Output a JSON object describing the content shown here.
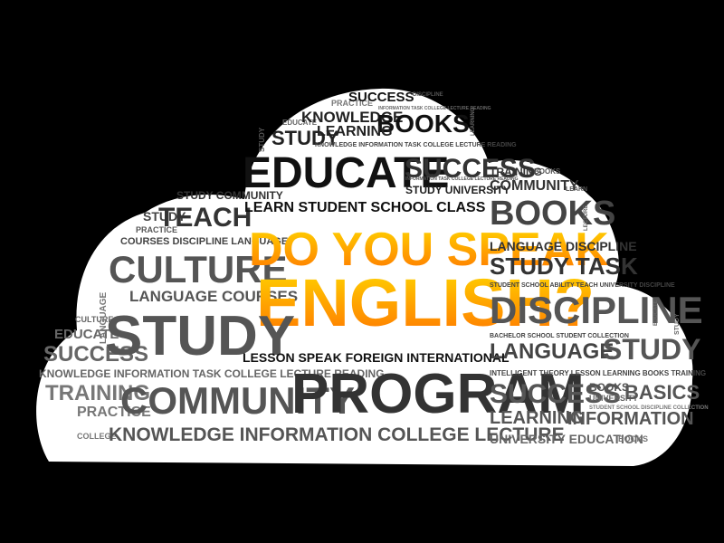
{
  "colors": {
    "background": "#000000",
    "cloud": "#ffffff",
    "highlight_top": "#ffd200",
    "highlight_bottom": "#ff7a00"
  },
  "headline": {
    "line1": "DO YOU SPEAK",
    "line2": "ENGLISH?"
  },
  "rows": {
    "success_top": "SUCCESS",
    "practice": "PRACTICE",
    "discipline_tiny": "DISCIPLINE",
    "information_tiny": "INFORMATION TASK COLLEGE LECTURE READING",
    "educate_small": "EDUCATE",
    "knowledge": "KNOWLEDGE",
    "books_top": "BOOKS",
    "learning_small": "LEARNING",
    "study_small": "STUDY",
    "knowledge_row": "KNOWLEDGE INFORMATION TASK COLLEGE LECTURE READING",
    "educate": "EDUCATE",
    "success_mid": "SUCCESS",
    "training": "TRAINING",
    "books_tiny": "BOOKS",
    "info_task_mid": "INFORMATION TASK COLLEGE LECTURE READING",
    "community_right": "COMMUNITY",
    "study_university": "STUDY UNIVERSITY",
    "study_community": "STUDY COMMUNITY",
    "teach": "TEACH",
    "learn_student": "LEARN STUDENT SCHOOL CLASS",
    "books_right": "BOOKS",
    "study_left": "STUDY",
    "practice_left": "PRACTICE",
    "courses_discipline": "COURSES DISCIPLINE LANGUAGE",
    "language_discipline": "LANGUAGE DISCIPLINE",
    "culture": "CULTURE",
    "study_task": "STUDY TASK",
    "student_school": "STUDENT SCHOOL ABILITY TEACH UNIVERSITY DISCIPLINE",
    "language_courses": "LANGUAGE COURSES",
    "discipline_big": "DISCIPLINE",
    "culture_small": "CULTURE",
    "study_big": "STUDY",
    "educate_left": "EDUCATE",
    "success_left": "SUCCESS",
    "lesson_row": "LESSON SPEAK FOREIGN INTERNATIONAL",
    "bachelor_row": "BACHELOR SCHOOL STUDENT COLLECTION",
    "language_right": "LANGUAGE",
    "study_right": "STUDY",
    "knowledge_left": "KNOWLEDGE INFORMATION TASK COLLEGE LECTURE READING",
    "intelligent_row": "INTELLIGENT THEORY LESSON LEARNING BOOKS TRAINING",
    "training_left": "TRAINING",
    "community_big": "COMMUNITY",
    "program": "PROGRAM",
    "success_right": "SUCCESS",
    "books_small": "BOOKS",
    "university_small": "UNIVERSITY",
    "basics": "BASICS",
    "practice_bottom": "PRACTICE",
    "learning_right": "LEARNING",
    "information_right": "INFORMATION",
    "college_small": "COLLEGE",
    "knowledge_bottom": "KNOWLEDGE INFORMATION COLLEGE LECTURE",
    "university_education": "UNIVERSITY EDUCATION",
    "books_bottom": "BOOKS",
    "school_collection": "STUDENT SCHOOL DISCIPLINE COLLECTION",
    "learn_tiny": "LEARN"
  },
  "vertical": {
    "language_left": "LANGUAGE",
    "study_left": "STUDY",
    "learning_top": "LEARNING",
    "lecture_right": "LECTURE",
    "study_mid": "STUDY",
    "educate_right": "EDUCATE"
  }
}
